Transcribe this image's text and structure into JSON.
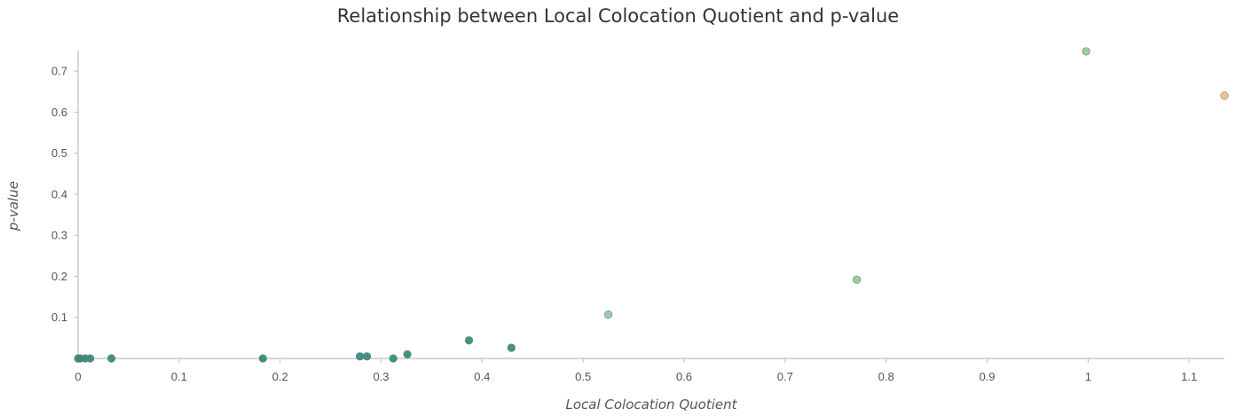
{
  "chart_data": {
    "type": "scatter",
    "title": "Relationship between Local Colocation Quotient and p-value",
    "xlabel": "Local Colocation Quotient",
    "ylabel": "p-value",
    "xlim": [
      0,
      1.135
    ],
    "ylim": [
      0,
      0.75
    ],
    "xticks": [
      "0",
      "0.1",
      "0.2",
      "0.3",
      "0.4",
      "0.5",
      "0.6",
      "0.7",
      "0.8",
      "0.9",
      "1",
      "1.1"
    ],
    "yticks": [
      "0.1",
      "0.2",
      "0.3",
      "0.4",
      "0.5",
      "0.6",
      "0.7"
    ],
    "grid": false,
    "points": [
      {
        "x": 0.0,
        "y": 0.0,
        "color": "#2e8b7a"
      },
      {
        "x": 0.002,
        "y": 0.0,
        "color": "#2e8b7a"
      },
      {
        "x": 0.007,
        "y": 0.0,
        "color": "#2e8b7a"
      },
      {
        "x": 0.012,
        "y": 0.0,
        "color": "#2e8b7a"
      },
      {
        "x": 0.033,
        "y": 0.0,
        "color": "#2e8b7a"
      },
      {
        "x": 0.183,
        "y": 0.0,
        "color": "#2e8b7a"
      },
      {
        "x": 0.279,
        "y": 0.005,
        "color": "#2e8b7a"
      },
      {
        "x": 0.286,
        "y": 0.005,
        "color": "#2e8b7a"
      },
      {
        "x": 0.312,
        "y": 0.0,
        "color": "#2e8b7a"
      },
      {
        "x": 0.326,
        "y": 0.01,
        "color": "#2e8b7a"
      },
      {
        "x": 0.387,
        "y": 0.044,
        "color": "#2e8b7a"
      },
      {
        "x": 0.429,
        "y": 0.026,
        "color": "#2e8b7a"
      },
      {
        "x": 0.525,
        "y": 0.107,
        "color": "#8ccc9c"
      },
      {
        "x": 0.771,
        "y": 0.192,
        "color": "#8ccc9c"
      },
      {
        "x": 0.998,
        "y": 0.748,
        "color": "#8ccc9c"
      },
      {
        "x": 1.135,
        "y": 0.64,
        "color": "#e9c37c"
      }
    ]
  }
}
